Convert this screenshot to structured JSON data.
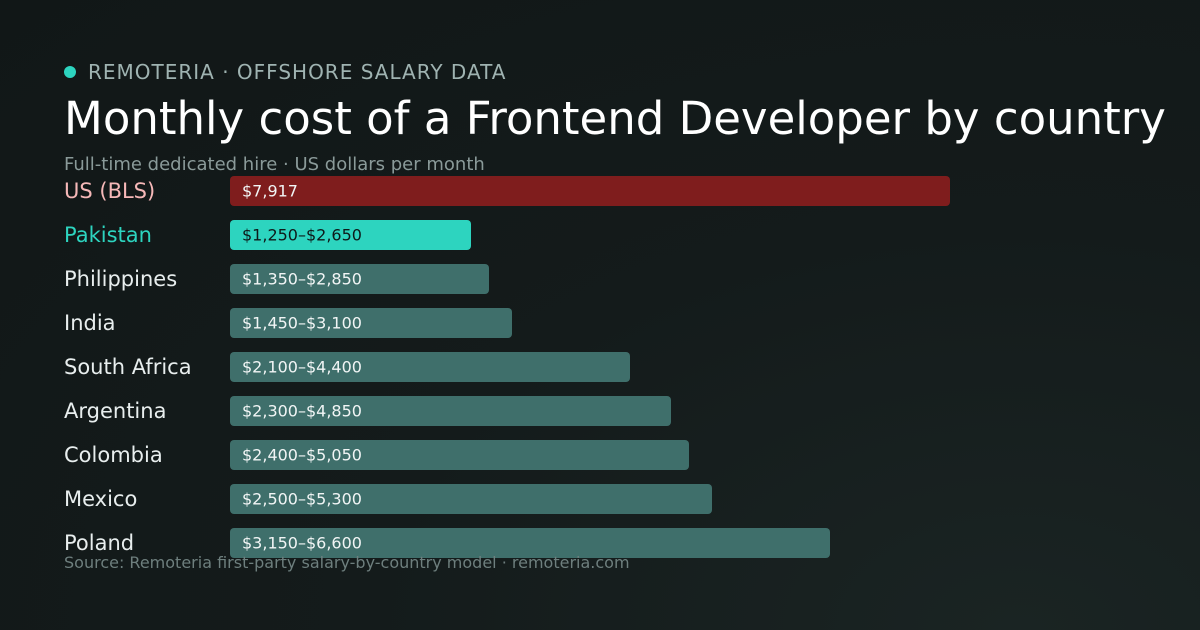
{
  "header": {
    "brand": "REMOTERIA · OFFSHORE SALARY DATA",
    "title": "Monthly cost of a Frontend Developer by country",
    "subtitle": "Full-time dedicated hire · US dollars per month"
  },
  "footer": {
    "source": "Source: Remoteria first-party salary-by-country model · remoteria.com"
  },
  "colors": {
    "accent": "#2dd4bf",
    "benchmark_bar": "#7f1d1d",
    "benchmark_label": "#f6b8b8",
    "default_bar": "#3f6f6b",
    "background": "#141b1b"
  },
  "chart_data": {
    "type": "bar",
    "orientation": "horizontal",
    "title": "Monthly cost of a Frontend Developer by country",
    "subtitle": "Full-time dedicated hire · US dollars per month",
    "xlabel": "",
    "ylabel": "",
    "grid": false,
    "categories": [
      "US (BLS)",
      "Pakistan",
      "Philippines",
      "India",
      "South Africa",
      "Argentina",
      "Colombia",
      "Mexico",
      "Poland"
    ],
    "value_labels": [
      "$7,917",
      "$1,250–$2,650",
      "$1,350–$2,850",
      "$1,450–$3,100",
      "$2,100–$4,400",
      "$2,300–$4,850",
      "$2,400–$5,050",
      "$2,500–$5,300",
      "$3,150–$6,600"
    ],
    "low": [
      7917,
      1250,
      1350,
      1450,
      2100,
      2300,
      2400,
      2500,
      3150
    ],
    "high": [
      7917,
      2650,
      2850,
      3100,
      4400,
      4850,
      5050,
      5300,
      6600
    ],
    "bar_value": "high",
    "highlight": [
      "Pakistan"
    ],
    "benchmark": [
      "US (BLS)"
    ]
  }
}
